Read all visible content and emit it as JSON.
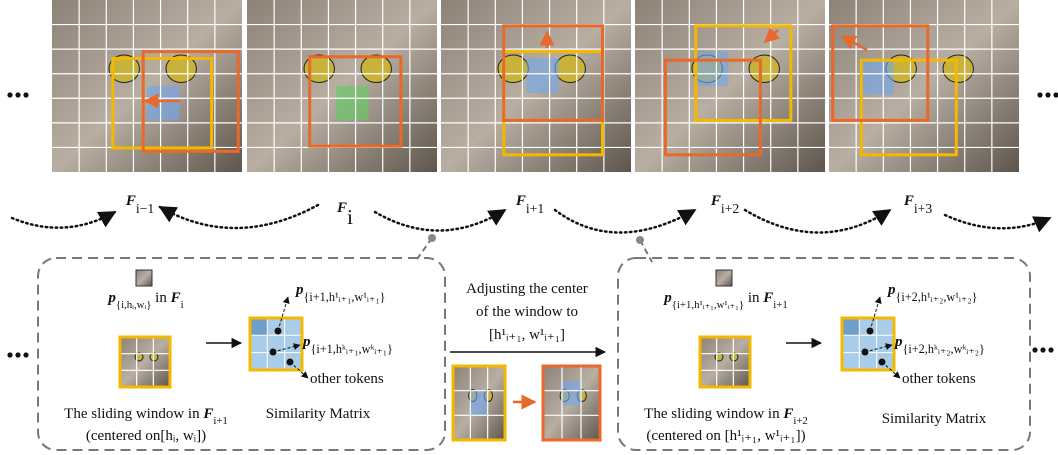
{
  "frame_labels": [
    [
      {
        "t": "F",
        "s": "bi"
      },
      {
        "t": "i−1",
        "s": "sub"
      }
    ],
    [
      {
        "t": "F",
        "s": "bi"
      },
      {
        "t": "i",
        "s": "sub"
      }
    ],
    [
      {
        "t": "F",
        "s": "bi"
      },
      {
        "t": "i+1",
        "s": "sub"
      }
    ],
    [
      {
        "t": "F",
        "s": "bi"
      },
      {
        "t": "i+2",
        "s": "sub"
      }
    ],
    [
      {
        "t": "F",
        "s": "bi"
      },
      {
        "t": "i+3",
        "s": "sub"
      }
    ]
  ],
  "left_panel": {
    "token_label": [
      {
        "t": "p",
        "s": "bi"
      },
      {
        "t": "{i,hᵢ,wᵢ}",
        "s": "sub"
      },
      {
        "t": " in ",
        "s": "n"
      },
      {
        "t": "F",
        "s": "bi"
      },
      {
        "t": "i",
        "s": "sub"
      }
    ],
    "match_first": [
      {
        "t": "p",
        "s": "bi"
      },
      {
        "t": "{i+1,h¹ᵢ₊₁,w¹ᵢ₊₁}",
        "s": "sub"
      }
    ],
    "match_k": [
      {
        "t": "p",
        "s": "bi"
      },
      {
        "t": "{i+1,hᵏᵢ₊₁,wᵏᵢ₊₁}",
        "s": "sub"
      }
    ],
    "other_tokens": [
      {
        "t": "other tokens",
        "s": "n"
      }
    ],
    "window_caption": [
      {
        "t": "The sliding window in ",
        "s": "n"
      },
      {
        "t": "F",
        "s": "bi"
      },
      {
        "t": "i+1",
        "s": "sub"
      }
    ],
    "window_caption_2": [
      {
        "t": "(centered on[hᵢ, wᵢ])",
        "s": "n"
      }
    ],
    "matrix_caption": [
      {
        "t": "Similarity Matrix",
        "s": "n"
      }
    ]
  },
  "middle": {
    "line_1": [
      {
        "t": "Adjusting the center",
        "s": "n"
      }
    ],
    "line_2": [
      {
        "t": "of the window to",
        "s": "n"
      }
    ],
    "line_3": [
      {
        "t": "[h¹ᵢ₊₁, w¹ᵢ₊₁]",
        "s": "n"
      }
    ]
  },
  "right_panel": {
    "token_label": [
      {
        "t": "p",
        "s": "bi"
      },
      {
        "t": "{i+1,h¹ᵢ₊₁,w¹ᵢ₊₁}",
        "s": "sub"
      },
      {
        "t": " in ",
        "s": "n"
      },
      {
        "t": "F",
        "s": "bi"
      },
      {
        "t": "i+1",
        "s": "sub"
      }
    ],
    "match_first": [
      {
        "t": "p",
        "s": "bi"
      },
      {
        "t": "{i+2,h¹ᵢ₊₂,w¹ᵢ₊₂}",
        "s": "sub"
      }
    ],
    "match_k": [
      {
        "t": "p",
        "s": "bi"
      },
      {
        "t": "{i+2,hᵏᵢ₊₂,wᵏᵢ₊₂}",
        "s": "sub"
      }
    ],
    "other_tokens": [
      {
        "t": "other tokens",
        "s": "n"
      }
    ],
    "window_caption": [
      {
        "t": "The sliding window in ",
        "s": "n"
      },
      {
        "t": "F",
        "s": "bi"
      },
      {
        "t": "i+2",
        "s": "sub"
      }
    ],
    "window_caption_2": [
      {
        "t": "(centered on [h¹ᵢ₊₁, w¹ᵢ₊₁])",
        "s": "n"
      }
    ],
    "matrix_caption": [
      {
        "t": "Similarity Matrix",
        "s": "n"
      }
    ]
  }
}
